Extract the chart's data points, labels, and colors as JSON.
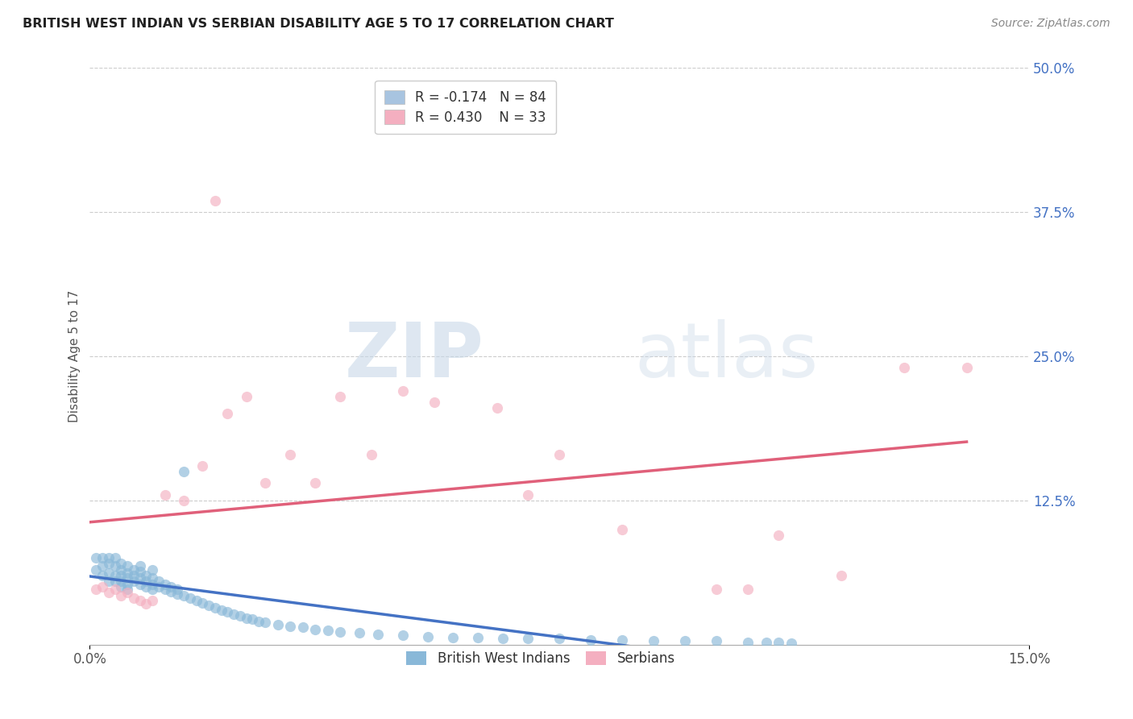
{
  "title": "BRITISH WEST INDIAN VS SERBIAN DISABILITY AGE 5 TO 17 CORRELATION CHART",
  "source": "Source: ZipAtlas.com",
  "ylabel": "Disability Age 5 to 17",
  "xlim": [
    0.0,
    0.15
  ],
  "ylim": [
    0.0,
    0.5
  ],
  "yticks": [
    0.0,
    0.125,
    0.25,
    0.375,
    0.5
  ],
  "ytick_labels": [
    "",
    "12.5%",
    "25.0%",
    "37.5%",
    "50.0%"
  ],
  "xtick_labels": [
    "0.0%",
    "15.0%"
  ],
  "legend_entries": [
    {
      "label": "R = -0.174   N = 84",
      "color": "#a8c4e0"
    },
    {
      "label": "R = 0.430    N = 33",
      "color": "#f4afc0"
    }
  ],
  "legend_bottom": [
    "British West Indians",
    "Serbians"
  ],
  "blue_color": "#89b8d8",
  "pink_color": "#f4afc0",
  "blue_line_color": "#4472c4",
  "pink_line_color": "#e0607a",
  "watermark_zip": "ZIP",
  "watermark_atlas": "atlas",
  "bwi_x": [
    0.001,
    0.001,
    0.002,
    0.002,
    0.002,
    0.003,
    0.003,
    0.003,
    0.003,
    0.004,
    0.004,
    0.004,
    0.004,
    0.005,
    0.005,
    0.005,
    0.005,
    0.005,
    0.006,
    0.006,
    0.006,
    0.006,
    0.006,
    0.007,
    0.007,
    0.007,
    0.008,
    0.008,
    0.008,
    0.008,
    0.009,
    0.009,
    0.009,
    0.01,
    0.01,
    0.01,
    0.01,
    0.011,
    0.011,
    0.012,
    0.012,
    0.013,
    0.013,
    0.014,
    0.014,
    0.015,
    0.015,
    0.016,
    0.017,
    0.018,
    0.019,
    0.02,
    0.021,
    0.022,
    0.023,
    0.024,
    0.025,
    0.026,
    0.027,
    0.028,
    0.03,
    0.032,
    0.034,
    0.036,
    0.038,
    0.04,
    0.043,
    0.046,
    0.05,
    0.054,
    0.058,
    0.062,
    0.066,
    0.07,
    0.075,
    0.08,
    0.085,
    0.09,
    0.095,
    0.1,
    0.105,
    0.108,
    0.11,
    0.112
  ],
  "bwi_y": [
    0.065,
    0.075,
    0.06,
    0.068,
    0.075,
    0.055,
    0.062,
    0.07,
    0.075,
    0.055,
    0.06,
    0.068,
    0.075,
    0.05,
    0.055,
    0.06,
    0.065,
    0.07,
    0.048,
    0.052,
    0.058,
    0.062,
    0.068,
    0.055,
    0.06,
    0.065,
    0.052,
    0.058,
    0.063,
    0.068,
    0.05,
    0.055,
    0.06,
    0.048,
    0.052,
    0.058,
    0.065,
    0.05,
    0.055,
    0.048,
    0.052,
    0.046,
    0.05,
    0.044,
    0.048,
    0.15,
    0.042,
    0.04,
    0.038,
    0.036,
    0.034,
    0.032,
    0.03,
    0.028,
    0.026,
    0.025,
    0.023,
    0.022,
    0.02,
    0.019,
    0.017,
    0.016,
    0.015,
    0.013,
    0.012,
    0.011,
    0.01,
    0.009,
    0.008,
    0.007,
    0.006,
    0.006,
    0.005,
    0.005,
    0.005,
    0.004,
    0.004,
    0.003,
    0.003,
    0.003,
    0.002,
    0.002,
    0.002,
    0.001
  ],
  "serb_x": [
    0.001,
    0.002,
    0.003,
    0.004,
    0.005,
    0.006,
    0.007,
    0.008,
    0.009,
    0.01,
    0.012,
    0.015,
    0.018,
    0.02,
    0.022,
    0.025,
    0.028,
    0.032,
    0.036,
    0.04,
    0.045,
    0.05,
    0.055,
    0.065,
    0.07,
    0.075,
    0.085,
    0.1,
    0.105,
    0.11,
    0.12,
    0.13,
    0.14
  ],
  "serb_y": [
    0.048,
    0.05,
    0.045,
    0.048,
    0.042,
    0.045,
    0.04,
    0.038,
    0.035,
    0.038,
    0.13,
    0.125,
    0.155,
    0.385,
    0.2,
    0.215,
    0.14,
    0.165,
    0.14,
    0.215,
    0.165,
    0.22,
    0.21,
    0.205,
    0.13,
    0.165,
    0.1,
    0.048,
    0.048,
    0.095,
    0.06,
    0.24,
    0.24
  ]
}
